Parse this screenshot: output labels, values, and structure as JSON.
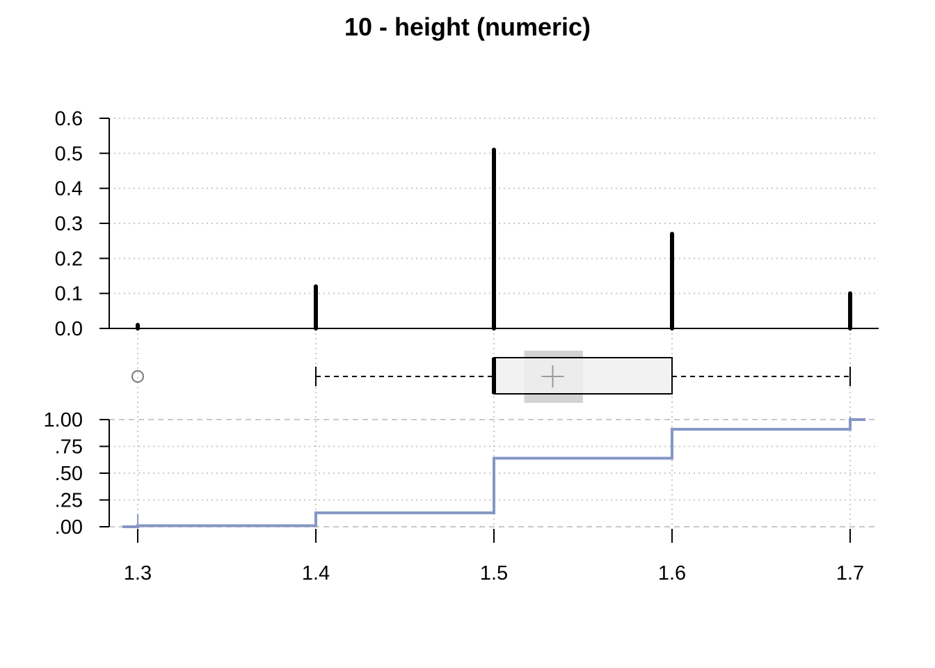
{
  "chart_data": {
    "title": "10 - height (numeric)",
    "type": "composite",
    "x_ticks": [
      1.3,
      1.4,
      1.5,
      1.6,
      1.7
    ],
    "x_tick_labels": [
      "1.3",
      "1.4",
      "1.5",
      "1.6",
      "1.7"
    ],
    "xlim": [
      1.284,
      1.716
    ],
    "panels": [
      {
        "type": "bar",
        "role": "relative-frequency",
        "x": [
          1.3,
          1.4,
          1.5,
          1.6,
          1.7
        ],
        "values": [
          0.01,
          0.12,
          0.51,
          0.27,
          0.1
        ],
        "ylim": [
          0,
          0.6
        ],
        "y_ticks": [
          0.0,
          0.1,
          0.2,
          0.3,
          0.4,
          0.5,
          0.6
        ],
        "y_tick_labels": [
          "0.0",
          "0.1",
          "0.2",
          "0.3",
          "0.4",
          "0.5",
          "0.6"
        ],
        "grid": true,
        "color": "#000000"
      },
      {
        "type": "boxplot",
        "whisker_low": 1.4,
        "q1": 1.5,
        "median": 1.5,
        "q3": 1.6,
        "whisker_high": 1.7,
        "mean": 1.533,
        "mean_ci": [
          1.517,
          1.55
        ],
        "outliers": [
          1.3
        ],
        "box_color": "#f0f0f0",
        "ci_color": "#d3d3d3"
      },
      {
        "type": "line",
        "role": "ecdf",
        "step": true,
        "x": [
          1.3,
          1.4,
          1.5,
          1.6,
          1.7
        ],
        "values": [
          0.01,
          0.13,
          0.64,
          0.91,
          1.0
        ],
        "ylim": [
          0,
          1
        ],
        "y_ticks": [
          0,
          0.25,
          0.5,
          0.75,
          1.0
        ],
        "y_tick_labels": [
          ".00",
          ".25",
          ".50",
          ".75",
          "1.00"
        ],
        "grid": true,
        "color": "#8497c5"
      }
    ]
  }
}
